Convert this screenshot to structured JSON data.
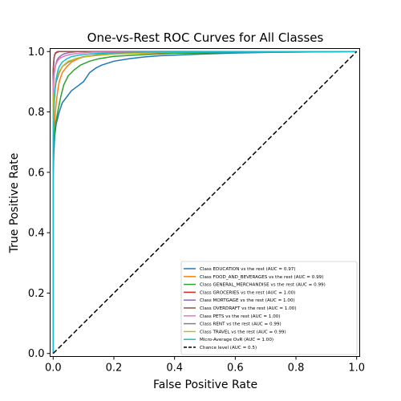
{
  "chart_data": {
    "type": "line",
    "title": "One-vs-Rest ROC Curves for All Classes",
    "xlabel": "False Positive Rate",
    "ylabel": "True Positive Rate",
    "xlim": [
      -0.01,
      1.01
    ],
    "ylim": [
      -0.01,
      1.01
    ],
    "xticks": [
      "0.0",
      "0.2",
      "0.4",
      "0.6",
      "0.8",
      "1.0"
    ],
    "yticks": [
      "0.0",
      "0.2",
      "0.4",
      "0.6",
      "0.8",
      "1.0"
    ],
    "grid": false,
    "legend_position": "lower-right",
    "series": [
      {
        "name": "Class EDUCATION vs the rest (AUC = 0.97)",
        "color": "#1f77b4",
        "style": "solid",
        "x": [
          0.0,
          0.0,
          0.002,
          0.005,
          0.01,
          0.02,
          0.03,
          0.045,
          0.06,
          0.08,
          0.1,
          0.12,
          0.14,
          0.16,
          0.2,
          0.25,
          0.3,
          0.35,
          0.4,
          0.45,
          0.5,
          0.6,
          0.7,
          0.8,
          0.9,
          1.0
        ],
        "y": [
          0.0,
          0.58,
          0.66,
          0.72,
          0.76,
          0.8,
          0.83,
          0.85,
          0.87,
          0.885,
          0.9,
          0.93,
          0.945,
          0.955,
          0.968,
          0.976,
          0.982,
          0.986,
          0.988,
          0.99,
          0.992,
          0.995,
          0.997,
          0.998,
          0.999,
          1.0
        ]
      },
      {
        "name": "Class FOOD_AND_BEVERAGES vs the rest (AUC = 0.99)",
        "color": "#ff7f0e",
        "style": "solid",
        "x": [
          0.0,
          0.0,
          0.003,
          0.006,
          0.01,
          0.015,
          0.02,
          0.03,
          0.045,
          0.06,
          0.08,
          0.1,
          0.15,
          0.2,
          0.3,
          0.5,
          0.7,
          1.0
        ],
        "y": [
          0.0,
          0.66,
          0.72,
          0.78,
          0.83,
          0.87,
          0.9,
          0.93,
          0.95,
          0.965,
          0.975,
          0.982,
          0.988,
          0.992,
          0.995,
          0.998,
          0.999,
          1.0
        ]
      },
      {
        "name": "Class GENERAL_MERCHANDISE vs the rest (AUC = 0.99)",
        "color": "#2ca02c",
        "style": "solid",
        "x": [
          0.0,
          0.0,
          0.004,
          0.008,
          0.015,
          0.025,
          0.035,
          0.05,
          0.07,
          0.09,
          0.12,
          0.15,
          0.2,
          0.3,
          0.4,
          0.6,
          1.0
        ],
        "y": [
          0.0,
          0.66,
          0.72,
          0.76,
          0.8,
          0.85,
          0.89,
          0.92,
          0.94,
          0.955,
          0.968,
          0.976,
          0.984,
          0.99,
          0.994,
          0.997,
          1.0
        ]
      },
      {
        "name": "Class GROCERIES vs the rest (AUC = 1.00)",
        "color": "#d62728",
        "style": "solid",
        "x": [
          0.0,
          0.0,
          0.002,
          0.003,
          0.005,
          0.008,
          0.015,
          1.0
        ],
        "y": [
          0.0,
          0.93,
          0.96,
          0.98,
          0.99,
          0.996,
          1.0,
          1.0
        ]
      },
      {
        "name": "Class MORTGAGE vs the rest (AUC = 1.00)",
        "color": "#9467bd",
        "style": "solid",
        "x": [
          0.0,
          0.0,
          0.004,
          0.008,
          0.012,
          0.018,
          0.025,
          0.035,
          0.05,
          0.08,
          1.0
        ],
        "y": [
          0.0,
          0.88,
          0.93,
          0.955,
          0.97,
          0.98,
          0.986,
          0.992,
          0.996,
          1.0,
          1.0
        ]
      },
      {
        "name": "Class OVERDRAFT vs the rest (AUC = 1.00)",
        "color": "#8c564b",
        "style": "solid",
        "x": [
          0.0,
          0.0,
          0.002,
          0.004,
          0.007,
          0.012,
          0.02,
          1.0
        ],
        "y": [
          0.0,
          0.94,
          0.97,
          0.985,
          0.993,
          0.997,
          1.0,
          1.0
        ]
      },
      {
        "name": "Class PETS vs the rest (AUC = 1.00)",
        "color": "#e377c2",
        "style": "solid",
        "x": [
          0.0,
          0.0,
          0.004,
          0.008,
          0.015,
          0.025,
          0.04,
          0.06,
          0.09,
          0.13,
          1.0
        ],
        "y": [
          0.0,
          0.9,
          0.935,
          0.955,
          0.97,
          0.98,
          0.986,
          0.991,
          0.995,
          0.998,
          1.0
        ]
      },
      {
        "name": "Class RENT vs the rest (AUC = 0.99)",
        "color": "#7f7f7f",
        "style": "solid",
        "x": [
          0.0,
          0.0,
          0.005,
          0.01,
          0.02,
          0.03,
          0.05,
          0.07,
          0.1,
          0.15,
          0.25,
          0.4,
          1.0
        ],
        "y": [
          0.0,
          0.82,
          0.87,
          0.9,
          0.93,
          0.95,
          0.965,
          0.975,
          0.983,
          0.99,
          0.995,
          0.998,
          1.0
        ]
      },
      {
        "name": "Class TRAVEL vs the rest (AUC = 0.99)",
        "color": "#bcbd22",
        "style": "solid",
        "x": [
          0.0,
          0.0,
          0.005,
          0.01,
          0.02,
          0.035,
          0.05,
          0.08,
          0.12,
          0.18,
          0.25,
          0.35,
          0.5,
          1.0
        ],
        "y": [
          0.0,
          0.84,
          0.88,
          0.91,
          0.935,
          0.955,
          0.968,
          0.978,
          0.985,
          0.99,
          0.994,
          0.997,
          0.999,
          1.0
        ]
      },
      {
        "name": "Micro-Average OvR (AUC = 1.00)",
        "color": "#17becf",
        "style": "solid",
        "x": [
          0.0,
          0.0,
          0.002,
          0.004,
          0.007,
          0.01,
          0.015,
          0.02,
          0.03,
          0.045,
          0.06,
          0.09,
          0.13,
          0.2,
          0.3,
          0.5,
          1.0
        ],
        "y": [
          0.0,
          0.7,
          0.78,
          0.84,
          0.88,
          0.91,
          0.935,
          0.95,
          0.965,
          0.976,
          0.983,
          0.989,
          0.993,
          0.996,
          0.998,
          0.999,
          1.0
        ]
      },
      {
        "name": "Chance level (AUC = 0.5)",
        "color": "#000000",
        "style": "dashed",
        "x": [
          0.0,
          1.0
        ],
        "y": [
          0.0,
          1.0
        ]
      }
    ]
  }
}
